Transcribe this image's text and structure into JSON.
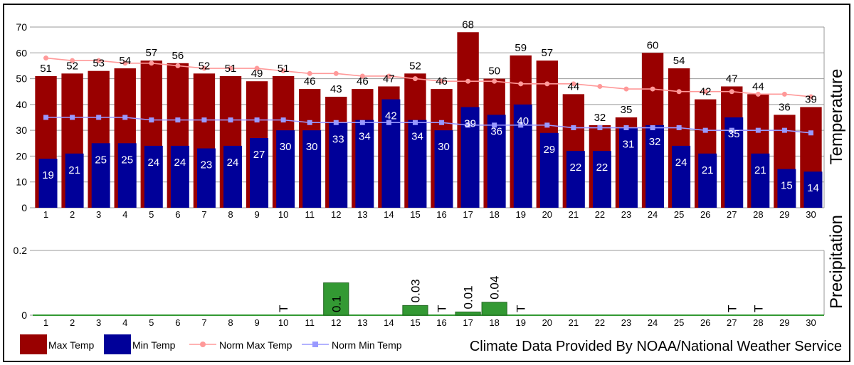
{
  "colors": {
    "max_temp": "#990000",
    "min_temp": "#000099",
    "norm_max": "#ff9999",
    "norm_min": "#9999ff",
    "precip": "#339933",
    "grid": "#999999"
  },
  "credit": "Climate Data Provided By NOAA/National Weather Service",
  "chart_data": [
    {
      "type": "bar",
      "ylabel": "Temperature",
      "ylim": [
        0,
        70
      ],
      "yticks": [
        "0",
        "10",
        "20",
        "30",
        "40",
        "50",
        "60",
        "70"
      ],
      "grid": true,
      "categories": [
        "1",
        "2",
        "3",
        "4",
        "5",
        "6",
        "7",
        "8",
        "9",
        "10",
        "11",
        "12",
        "13",
        "14",
        "15",
        "16",
        "17",
        "18",
        "19",
        "20",
        "21",
        "22",
        "23",
        "24",
        "25",
        "26",
        "27",
        "28",
        "29",
        "30"
      ],
      "series": [
        {
          "name": "Max Temp",
          "kind": "bar",
          "color": "#990000",
          "values": [
            51,
            52,
            53,
            54,
            57,
            56,
            52,
            51,
            49,
            51,
            46,
            43,
            46,
            47,
            52,
            46,
            68,
            50,
            59,
            57,
            44,
            32,
            35,
            60,
            54,
            42,
            47,
            44,
            36,
            39
          ]
        },
        {
          "name": "Min Temp",
          "kind": "bar",
          "color": "#000099",
          "values": [
            19,
            21,
            25,
            25,
            24,
            24,
            23,
            24,
            27,
            30,
            30,
            33,
            34,
            42,
            34,
            30,
            39,
            36,
            40,
            29,
            22,
            22,
            31,
            32,
            24,
            21,
            35,
            21,
            15,
            14
          ]
        },
        {
          "name": "Norm Max Temp",
          "kind": "line",
          "color": "#ff9999",
          "values": [
            58,
            57,
            57,
            56,
            56,
            55,
            54,
            54,
            54,
            53,
            52,
            52,
            51,
            51,
            50,
            49,
            49,
            49,
            48,
            48,
            48,
            47,
            46,
            46,
            45,
            45,
            45,
            44,
            44,
            43
          ]
        },
        {
          "name": "Norm Min Temp",
          "kind": "line",
          "color": "#9999ff",
          "values": [
            35,
            35,
            35,
            35,
            34,
            34,
            34,
            34,
            34,
            34,
            33,
            33,
            33,
            33,
            33,
            33,
            32,
            32,
            32,
            32,
            31,
            31,
            31,
            31,
            31,
            30,
            30,
            30,
            30,
            29
          ]
        }
      ],
      "legend": [
        {
          "label": "Max Temp",
          "kind": "box",
          "color": "#990000"
        },
        {
          "label": "Min Temp",
          "kind": "box",
          "color": "#000099"
        },
        {
          "label": "Norm Max Temp",
          "kind": "line",
          "color": "#ff9999"
        },
        {
          "label": "Norm Min Temp",
          "kind": "line",
          "color": "#9999ff"
        }
      ],
      "legend_position": "bottom-left"
    },
    {
      "type": "bar",
      "ylabel": "Precipitation",
      "ylim": [
        0,
        0.2
      ],
      "yticks": [
        "0",
        "0.2"
      ],
      "grid": true,
      "categories": [
        "1",
        "2",
        "3",
        "4",
        "5",
        "6",
        "7",
        "8",
        "9",
        "10",
        "11",
        "12",
        "13",
        "14",
        "15",
        "16",
        "17",
        "18",
        "19",
        "20",
        "21",
        "22",
        "23",
        "24",
        "25",
        "26",
        "27",
        "28",
        "29",
        "30"
      ],
      "values": [
        0,
        0,
        0,
        0,
        0,
        0,
        0,
        0,
        0,
        0,
        0,
        0.1,
        0,
        0,
        0.03,
        0,
        0.01,
        0.04,
        0,
        0,
        0,
        0,
        0,
        0,
        0,
        0,
        0,
        0,
        0,
        0
      ],
      "labels": [
        "",
        "",
        "",
        "",
        "",
        "",
        "",
        "",
        "",
        "T",
        "",
        "0.1",
        "",
        "",
        "0.03",
        "T",
        "0.01",
        "0.04",
        "T",
        "",
        "",
        "",
        "",
        "",
        "",
        "",
        "T",
        "T",
        "",
        ""
      ]
    }
  ]
}
